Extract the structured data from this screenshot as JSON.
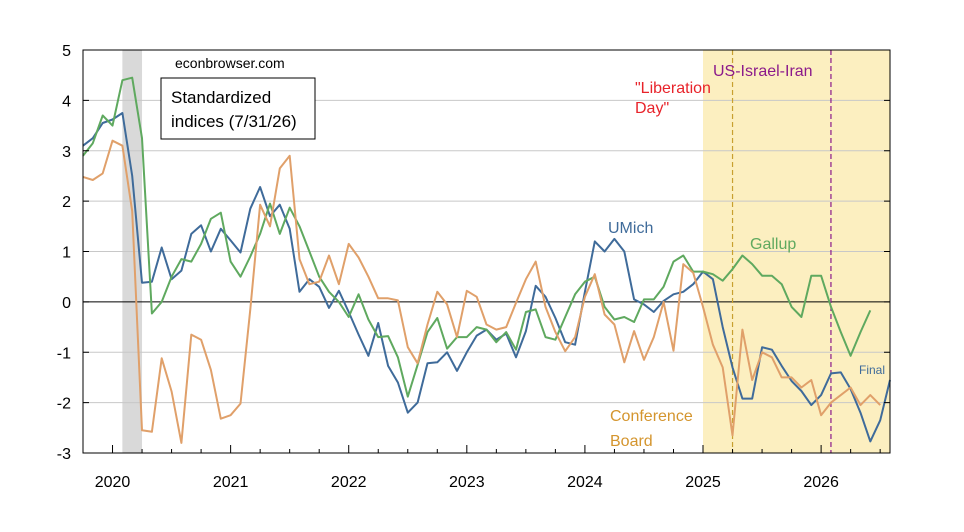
{
  "chart_data": {
    "type": "line",
    "title": "",
    "xlabel": "",
    "ylabel": "",
    "ylim": [
      -3,
      5
    ],
    "xlim": [
      "2019-10",
      "2026-08"
    ],
    "yticks": [
      "-3",
      "-2",
      "-1",
      "0",
      "1",
      "2",
      "3",
      "4",
      "5"
    ],
    "xticks": [
      "2020",
      "2021",
      "2022",
      "2023",
      "2024",
      "2025",
      "2026"
    ],
    "grid": "horizontal",
    "legend": "none",
    "watermark": "econbrowser.com",
    "info_box": [
      "Standardized",
      "indices (7/31/26)"
    ],
    "recession_shading": {
      "start": "2020-02",
      "end": "2020-04",
      "color": "#d9d9d9"
    },
    "highlight_region": {
      "start": "2025-01",
      "end": "2026-08",
      "color": "#fcefc0"
    },
    "events": [
      {
        "date": "2025-04",
        "label": [
          "\"Liberation",
          "Day\""
        ],
        "line_color": "#c8a030",
        "label_color": "#e8232a"
      },
      {
        "date": "2026-02",
        "label": [
          "US-Israel-Iran"
        ],
        "line_color": "#8b1a8b",
        "label_color": "#8b1a8b"
      }
    ],
    "series": [
      {
        "name": "UMich",
        "color": "#3f6b9a",
        "start": "2019-10",
        "values": [
          3.1,
          3.25,
          3.55,
          3.62,
          3.75,
          2.5,
          0.38,
          0.4,
          1.08,
          0.45,
          0.62,
          1.35,
          1.52,
          1.0,
          1.45,
          1.22,
          0.98,
          1.85,
          2.28,
          1.7,
          1.93,
          1.45,
          0.2,
          0.45,
          0.3,
          -0.12,
          0.22,
          -0.2,
          -0.65,
          -1.07,
          -0.42,
          -1.27,
          -1.6,
          -2.2,
          -2.0,
          -1.22,
          -1.2,
          -1.0,
          -1.37,
          -1.0,
          -0.67,
          -0.55,
          -0.75,
          -0.63,
          -1.1,
          -0.58,
          0.32,
          0.1,
          -0.32,
          -0.8,
          -0.85,
          0.2,
          1.2,
          1.0,
          1.25,
          1.0,
          0.05,
          -0.05,
          -0.2,
          0.02,
          0.15,
          0.2,
          0.35,
          0.6,
          0.45,
          -0.5,
          -1.3,
          -1.92,
          -1.92,
          -0.9,
          -0.95,
          -1.27,
          -1.57,
          -1.77,
          -2.05,
          -1.85,
          -1.42,
          -1.4,
          -1.73,
          -2.2,
          -2.77,
          -2.35,
          -1.55
        ]
      },
      {
        "name": "Gallup",
        "color": "#5fa95f",
        "start": "2019-10",
        "values": [
          2.9,
          3.15,
          3.7,
          3.5,
          4.4,
          4.45,
          3.25,
          -0.23,
          0.0,
          0.5,
          0.85,
          0.8,
          1.15,
          1.65,
          1.77,
          0.8,
          0.5,
          0.9,
          1.35,
          1.95,
          1.35,
          1.87,
          1.5,
          1.0,
          0.5,
          0.2,
          0.0,
          -0.3,
          0.15,
          -0.35,
          -0.7,
          -0.68,
          -1.1,
          -1.88,
          -1.25,
          -0.6,
          -0.32,
          -0.93,
          -0.7,
          -0.7,
          -0.5,
          -0.55,
          -0.8,
          -0.6,
          -0.95,
          -0.2,
          -0.15,
          -0.7,
          -0.75,
          -0.3,
          0.15,
          0.4,
          0.5,
          -0.1,
          -0.35,
          -0.3,
          -0.4,
          0.05,
          0.05,
          0.3,
          0.8,
          0.92,
          0.6,
          0.6,
          0.55,
          0.42,
          0.65,
          0.92,
          0.75,
          0.52,
          0.52,
          0.35,
          -0.1,
          -0.3,
          0.52,
          0.52,
          -0.1,
          -0.6,
          -1.07,
          -0.6,
          -0.17
        ]
      },
      {
        "name": "Conference Board",
        "color": "#e0a06a",
        "start": "2019-10",
        "values": [
          2.48,
          2.42,
          2.55,
          3.2,
          3.1,
          1.8,
          -2.55,
          -2.58,
          -1.12,
          -1.78,
          -2.8,
          -0.65,
          -0.75,
          -1.35,
          -2.32,
          -2.25,
          -2.02,
          -0.15,
          1.93,
          1.5,
          2.65,
          2.9,
          0.85,
          0.35,
          0.4,
          0.92,
          0.35,
          1.15,
          0.88,
          0.5,
          0.07,
          0.07,
          0.03,
          -0.9,
          -1.22,
          -0.45,
          0.2,
          -0.05,
          -0.7,
          0.22,
          0.1,
          -0.45,
          -0.55,
          -0.5,
          -0.02,
          0.45,
          0.8,
          -0.1,
          -0.6,
          -0.98,
          -0.7,
          0.1,
          0.55,
          -0.25,
          -0.45,
          -1.2,
          -0.58,
          -1.15,
          -0.7,
          0.0,
          -0.97,
          0.75,
          0.58,
          -0.1,
          -0.85,
          -1.3,
          -2.65,
          -0.55,
          -1.55,
          -1.0,
          -1.1,
          -1.5,
          -1.5,
          -1.7,
          -1.55,
          -2.25,
          -2.0,
          -1.85,
          -1.7,
          -2.05,
          -1.85,
          -2.05
        ]
      }
    ],
    "labels": {
      "umich": "UMich",
      "gallup": "Gallup",
      "conference": [
        "Conference",
        "Board"
      ],
      "final": "Final"
    }
  }
}
